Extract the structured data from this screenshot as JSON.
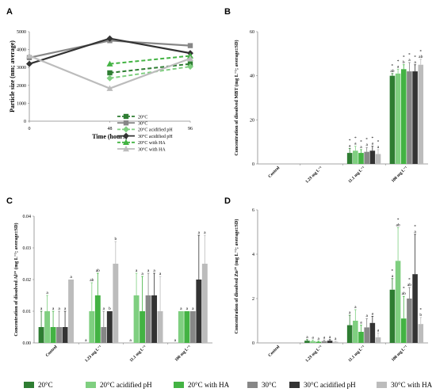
{
  "panel_letters": [
    "A",
    "B",
    "C",
    "D"
  ],
  "colors": {
    "20C": "#2e7d32",
    "20C_acid": "#7fcf80",
    "20C_HA": "#43b343",
    "30C": "#878787",
    "30C_acid": "#333333",
    "30C_HA": "#bcbcbc"
  },
  "bottom_legend": [
    "20°C",
    "20°C acidified pH",
    "20°C with HA",
    "30°C",
    "30°C acidified pH",
    "30°C with HA"
  ],
  "chart_data": [
    {
      "type": "line",
      "panel": "A",
      "xlabel": "Time (hours)",
      "ylabel": "Particle size (nm; average)",
      "x": [
        0,
        48,
        96
      ],
      "xlim": [
        0,
        96
      ],
      "ylim": [
        0,
        5000
      ],
      "yticks": [
        0,
        1000,
        2000,
        3000,
        4000,
        5000
      ],
      "legend_position": "bottom-right",
      "series": [
        {
          "name": "20°C",
          "x": [
            48,
            96
          ],
          "values": [
            2700,
            3200
          ],
          "dashed": true,
          "color": "#2e7d32",
          "marker": "square"
        },
        {
          "name": "30°C",
          "x": [
            0,
            48,
            96
          ],
          "values": [
            3550,
            4500,
            4220
          ],
          "dashed": false,
          "color": "#878787",
          "marker": "square"
        },
        {
          "name": "20°C acidified pH",
          "x": [
            48,
            96
          ],
          "values": [
            2400,
            3050
          ],
          "dashed": true,
          "color": "#7fcf80",
          "marker": "diamond"
        },
        {
          "name": "30°C acidified pH",
          "x": [
            0,
            48,
            96
          ],
          "values": [
            3200,
            4620,
            3800
          ],
          "dashed": false,
          "color": "#333333",
          "marker": "diamond"
        },
        {
          "name": "20°C with HA",
          "x": [
            48,
            96
          ],
          "values": [
            3200,
            3650
          ],
          "dashed": true,
          "color": "#43b343",
          "marker": "triangle"
        },
        {
          "name": "30°C with HA",
          "x": [
            0,
            48,
            96
          ],
          "values": [
            3650,
            1830,
            3500
          ],
          "dashed": false,
          "color": "#bcbcbc",
          "marker": "triangle"
        }
      ]
    },
    {
      "type": "bar",
      "panel": "B",
      "ylabel": "Concentration of dissolved MBT (mg L⁻¹; average±SD)",
      "categories": [
        "Control",
        "1.23 mg L⁻¹",
        "11.1 mg L⁻¹",
        "100 mg L⁻¹"
      ],
      "ylim": [
        0,
        60
      ],
      "yticks": [
        0,
        20,
        40,
        60
      ],
      "series_keys": [
        "20C",
        "20C_acid",
        "20C_HA",
        "30C",
        "30C_acid",
        "30C_HA"
      ],
      "values": [
        [
          0,
          0,
          0,
          0,
          0,
          0
        ],
        [
          0,
          0,
          0,
          0,
          0,
          0
        ],
        [
          5,
          6,
          5,
          5.5,
          6,
          4.5
        ],
        [
          40,
          41,
          43,
          42,
          42,
          45
        ]
      ],
      "errors": [
        [
          0,
          0,
          0,
          0,
          0,
          0
        ],
        [
          0,
          0,
          0,
          0,
          0,
          0
        ],
        [
          2,
          2,
          1.5,
          2,
          2,
          2
        ],
        [
          1,
          2,
          2,
          4,
          3,
          2.5
        ]
      ],
      "labels": [
        [
          [],
          [],
          [],
          [],
          [],
          []
        ],
        [
          [],
          [],
          [],
          [],
          [],
          []
        ],
        [
          [
            "*",
            "a"
          ],
          [
            "*",
            "a"
          ],
          [
            "*",
            "a"
          ],
          [
            "*",
            "a"
          ],
          [
            "*",
            "a"
          ],
          [
            "*",
            "a"
          ]
        ],
        [
          [
            "*",
            "ab"
          ],
          [
            "*",
            "a"
          ],
          [
            "*",
            "b"
          ],
          [
            "*",
            "a"
          ],
          [
            "*",
            "a"
          ],
          [
            "*",
            "ab"
          ]
        ]
      ]
    },
    {
      "type": "bar",
      "panel": "C",
      "ylabel": "Concentration of dissolved Al³⁺ (mg L⁻¹; average±SD)",
      "categories": [
        "Control",
        "1.23 mg L⁻¹",
        "11.1 mg L⁻¹",
        "100 mg L⁻¹"
      ],
      "ylim": [
        0,
        0.04
      ],
      "yticks": [
        0,
        0.01,
        0.02,
        0.03,
        0.04
      ],
      "ytick_labels": [
        "0.00",
        "0.01",
        "0.02",
        "0.03",
        "0.04"
      ],
      "series_keys": [
        "20C",
        "20C_acid",
        "20C_HA",
        "30C",
        "30C_acid",
        "30C_HA"
      ],
      "values": [
        [
          0.005,
          0.01,
          0.005,
          0.005,
          0.005,
          0.02
        ],
        [
          0,
          0.01,
          0.015,
          0.005,
          0.01,
          0.025
        ],
        [
          0,
          0.015,
          0.01,
          0.015,
          0.015,
          0.01
        ],
        [
          0,
          0.01,
          0.01,
          0.01,
          0.02,
          0.025
        ]
      ],
      "errors": [
        [
          0.005,
          0.005,
          0.005,
          0.005,
          0.005,
          0
        ],
        [
          0,
          0.009,
          0.007,
          0.005,
          0,
          0.007
        ],
        [
          0,
          0.007,
          0.011,
          0.007,
          0.007,
          0.011
        ],
        [
          0,
          0,
          0,
          0,
          0.014,
          0.009
        ]
      ],
      "labels": [
        [
          [
            "a"
          ],
          [
            "a"
          ],
          [
            "a"
          ],
          [
            "a"
          ],
          [
            "a"
          ],
          [
            "a"
          ]
        ],
        [
          [
            "a"
          ],
          [
            "ab"
          ],
          [
            "ab"
          ],
          [
            "a"
          ],
          [
            "b"
          ],
          [
            "b"
          ]
        ],
        [
          [
            "a"
          ],
          [
            "a"
          ],
          [
            "a"
          ],
          [
            "a"
          ],
          [
            "a"
          ],
          [
            "a"
          ]
        ],
        [
          [
            "a"
          ],
          [
            "a"
          ],
          [
            "a"
          ],
          [
            "a"
          ],
          [
            "a"
          ],
          [
            "a"
          ]
        ]
      ]
    },
    {
      "type": "bar",
      "panel": "D",
      "ylabel": "Concentration of dissolved Zn²⁺ (mg L⁻¹; average±SD)",
      "categories": [
        "Control",
        "1.23 mg L⁻¹",
        "11.1 mg L⁻¹",
        "100 mg L⁻¹"
      ],
      "ylim": [
        0,
        6
      ],
      "yticks": [
        0,
        2,
        4,
        6
      ],
      "series_keys": [
        "20C",
        "20C_acid",
        "20C_HA",
        "30C",
        "30C_acid",
        "30C_HA"
      ],
      "values": [
        [
          0,
          0,
          0,
          0,
          0,
          0
        ],
        [
          0.1,
          0.08,
          0.05,
          0.08,
          0.1,
          0.05
        ],
        [
          0.8,
          1.0,
          0.5,
          0.7,
          0.9,
          0.25
        ],
        [
          2.4,
          3.7,
          1.1,
          2.0,
          3.1,
          0.85
        ]
      ],
      "errors": [
        [
          0,
          0,
          0,
          0,
          0,
          0
        ],
        [
          0.05,
          0.05,
          0.03,
          0.05,
          0.05,
          0.03
        ],
        [
          0.45,
          0.5,
          0.3,
          0.4,
          0.3,
          0.2
        ],
        [
          0.5,
          1.5,
          1.0,
          0.5,
          1.8,
          0.3
        ]
      ],
      "labels": [
        [
          [],
          [],
          [],
          [],
          [],
          []
        ],
        [
          [
            "a"
          ],
          [
            "a"
          ],
          [
            "a"
          ],
          [
            "a"
          ],
          [
            "a"
          ],
          [
            "a"
          ]
        ],
        [
          [
            "a"
          ],
          [
            "a"
          ],
          [
            "a"
          ],
          [
            "a"
          ],
          [
            "a"
          ],
          [
            "a"
          ]
        ],
        [
          [
            "*",
            "a"
          ],
          [
            "*",
            "ab"
          ],
          [
            "*",
            "ab"
          ],
          [
            "*",
            "ab"
          ],
          [
            "*",
            "a"
          ],
          [
            "*",
            "b"
          ]
        ]
      ]
    }
  ]
}
